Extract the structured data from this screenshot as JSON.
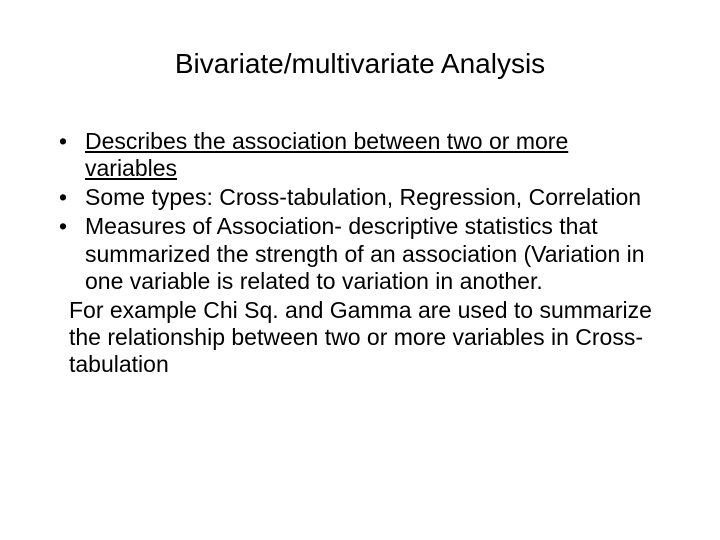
{
  "slide": {
    "title": "Bivariate/multivariate Analysis",
    "bullets": [
      {
        "text_underlined": "Describes the association between two or more variables"
      },
      {
        "text": "Some types: Cross-tabulation, Regression, Correlation"
      },
      {
        "text": "Measures of Association- descriptive statistics that summarized the strength of an association (Variation in one variable is related to variation in another."
      }
    ],
    "followup": "For example Chi Sq. and Gamma are used to summarize the relationship between two or more variables in Cross-tabulation"
  },
  "styling": {
    "background_color": "#ffffff",
    "text_color": "#000000",
    "title_fontsize": 28,
    "body_fontsize": 23,
    "font_family": "Arial",
    "slide_width": 720,
    "slide_height": 540
  }
}
